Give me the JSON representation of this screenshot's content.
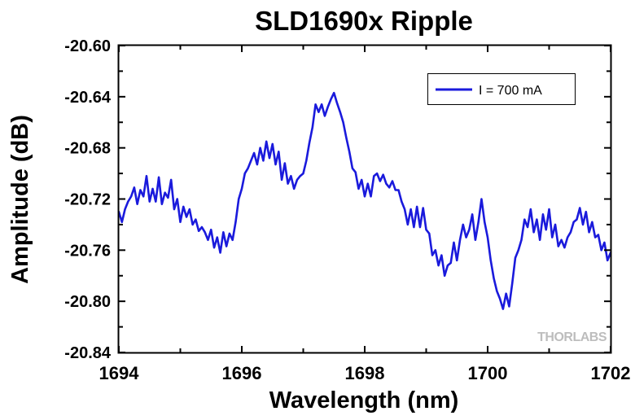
{
  "chart_data": {
    "type": "line",
    "title": "SLD1690x Ripple",
    "xlabel": "Wavelength (nm)",
    "ylabel": "Amplitude (dB)",
    "xlim": [
      1694,
      1702
    ],
    "ylim": [
      -20.84,
      -20.6
    ],
    "x_ticks": [
      1694,
      1696,
      1698,
      1700,
      1702
    ],
    "x_tick_labels": [
      "1694",
      "1696",
      "1698",
      "1700",
      "1702"
    ],
    "y_ticks": [
      -20.6,
      -20.64,
      -20.68,
      -20.72,
      -20.76,
      -20.8,
      -20.84
    ],
    "y_tick_labels": [
      "-20.60",
      "-20.64",
      "-20.68",
      "-20.72",
      "-20.76",
      "-20.80",
      "-20.84"
    ],
    "grid": false,
    "legend_position": "top-right",
    "series": [
      {
        "name": "I = 700 mA",
        "color": "#1a1adc",
        "x": [
          1694.0,
          1694.05,
          1694.1,
          1694.15,
          1694.2,
          1694.25,
          1694.3,
          1694.35,
          1694.4,
          1694.45,
          1694.5,
          1694.55,
          1694.6,
          1694.65,
          1694.7,
          1694.75,
          1694.8,
          1694.85,
          1694.9,
          1694.95,
          1695.0,
          1695.05,
          1695.1,
          1695.15,
          1695.2,
          1695.25,
          1695.3,
          1695.35,
          1695.4,
          1695.45,
          1695.5,
          1695.55,
          1695.6,
          1695.65,
          1695.7,
          1695.75,
          1695.8,
          1695.85,
          1695.9,
          1695.95,
          1696.0,
          1696.05,
          1696.1,
          1696.15,
          1696.2,
          1696.25,
          1696.3,
          1696.35,
          1696.4,
          1696.45,
          1696.5,
          1696.55,
          1696.6,
          1696.65,
          1696.7,
          1696.75,
          1696.8,
          1696.85,
          1696.9,
          1696.95,
          1697.0,
          1697.05,
          1697.1,
          1697.15,
          1697.2,
          1697.25,
          1697.3,
          1697.35,
          1697.4,
          1697.45,
          1697.5,
          1697.55,
          1697.6,
          1697.65,
          1697.7,
          1697.75,
          1697.8,
          1697.85,
          1697.9,
          1697.95,
          1698.0,
          1698.05,
          1698.1,
          1698.15,
          1698.2,
          1698.25,
          1698.3,
          1698.35,
          1698.4,
          1698.45,
          1698.5,
          1698.55,
          1698.6,
          1698.65,
          1698.7,
          1698.75,
          1698.8,
          1698.85,
          1698.9,
          1698.95,
          1699.0,
          1699.05,
          1699.1,
          1699.15,
          1699.2,
          1699.25,
          1699.3,
          1699.35,
          1699.4,
          1699.45,
          1699.5,
          1699.55,
          1699.6,
          1699.65,
          1699.7,
          1699.75,
          1699.8,
          1699.85,
          1699.9,
          1699.95,
          1700.0,
          1700.05,
          1700.1,
          1700.15,
          1700.2,
          1700.25,
          1700.3,
          1700.35,
          1700.4,
          1700.45,
          1700.5,
          1700.55,
          1700.6,
          1700.65,
          1700.7,
          1700.75,
          1700.8,
          1700.85,
          1700.9,
          1700.95,
          1701.0,
          1701.05,
          1701.1,
          1701.15,
          1701.2,
          1701.25,
          1701.3,
          1701.35,
          1701.4,
          1701.45,
          1701.5,
          1701.55,
          1701.6,
          1701.65,
          1701.7,
          1701.75,
          1701.8,
          1701.85,
          1701.9,
          1701.95,
          1702.0
        ],
        "y": [
          -20.73,
          -20.738,
          -20.728,
          -20.722,
          -20.718,
          -20.711,
          -20.724,
          -20.713,
          -20.718,
          -20.702,
          -20.722,
          -20.712,
          -20.722,
          -20.703,
          -20.724,
          -20.715,
          -20.719,
          -20.705,
          -20.728,
          -20.72,
          -20.738,
          -20.726,
          -20.734,
          -20.728,
          -20.74,
          -20.736,
          -20.745,
          -20.742,
          -20.746,
          -20.752,
          -20.744,
          -20.758,
          -20.75,
          -20.762,
          -20.746,
          -20.757,
          -20.747,
          -20.752,
          -20.738,
          -20.72,
          -20.712,
          -20.7,
          -20.696,
          -20.69,
          -20.684,
          -20.693,
          -20.68,
          -20.69,
          -20.675,
          -20.688,
          -20.677,
          -20.693,
          -20.683,
          -20.705,
          -20.692,
          -20.708,
          -20.702,
          -20.712,
          -20.705,
          -20.702,
          -20.7,
          -20.69,
          -20.676,
          -20.664,
          -20.646,
          -20.652,
          -20.646,
          -20.655,
          -20.648,
          -20.642,
          -20.637,
          -20.645,
          -20.652,
          -20.66,
          -20.672,
          -20.683,
          -20.696,
          -20.699,
          -20.712,
          -20.705,
          -20.718,
          -20.708,
          -20.718,
          -20.702,
          -20.7,
          -20.706,
          -20.701,
          -20.708,
          -20.711,
          -20.706,
          -20.713,
          -20.713,
          -20.722,
          -20.728,
          -20.74,
          -20.728,
          -20.742,
          -20.726,
          -20.742,
          -20.727,
          -20.744,
          -20.747,
          -20.764,
          -20.76,
          -20.772,
          -20.764,
          -20.78,
          -20.772,
          -20.77,
          -20.754,
          -20.768,
          -20.752,
          -20.74,
          -20.75,
          -20.744,
          -20.732,
          -20.752,
          -20.738,
          -20.72,
          -20.738,
          -20.75,
          -20.768,
          -20.782,
          -20.792,
          -20.798,
          -20.806,
          -20.794,
          -20.804,
          -20.786,
          -20.766,
          -20.76,
          -20.752,
          -20.736,
          -20.742,
          -20.728,
          -20.746,
          -20.736,
          -20.752,
          -20.732,
          -20.744,
          -20.728,
          -20.75,
          -20.74,
          -20.757,
          -20.752,
          -20.758,
          -20.75,
          -20.746,
          -20.738,
          -20.736,
          -20.727,
          -20.74,
          -20.73,
          -20.746,
          -20.738,
          -20.75,
          -20.748,
          -20.76,
          -20.754,
          -20.768,
          -20.762
        ]
      }
    ],
    "watermark": "THORLABS"
  }
}
